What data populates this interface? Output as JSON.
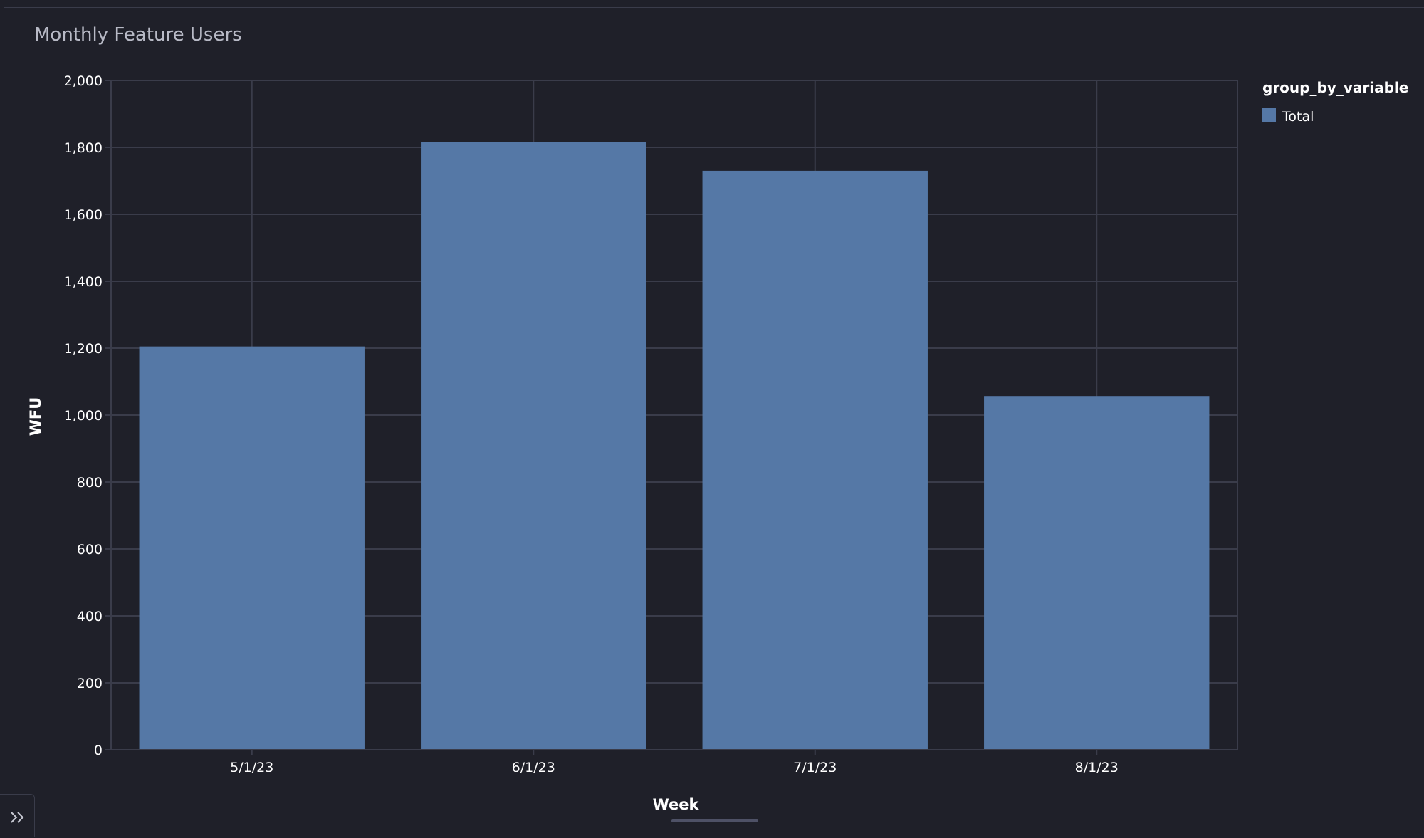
{
  "panel": {
    "title": "Monthly Feature Users"
  },
  "chart_data": {
    "type": "bar",
    "title": "Monthly Feature Users",
    "xlabel": "Week",
    "ylabel": "WFU",
    "categories": [
      "5/1/23",
      "6/1/23",
      "7/1/23",
      "8/1/23"
    ],
    "series": [
      {
        "name": "Total",
        "color": "#5578a6",
        "values": [
          1205,
          1815,
          1730,
          1057
        ]
      }
    ],
    "ylim": [
      0,
      2000
    ],
    "yticks": [
      0,
      200,
      400,
      600,
      800,
      1000,
      1200,
      1400,
      1600,
      1800,
      2000
    ],
    "ytick_labels": [
      "0",
      "200",
      "400",
      "600",
      "800",
      "1,000",
      "1,200",
      "1,400",
      "1,600",
      "1,800",
      "2,000"
    ],
    "grid": true,
    "legend": {
      "title": "group_by_variable",
      "placement": "top-right"
    }
  },
  "colors": {
    "background": "#1f2029",
    "grid": "#3a3c4a",
    "bar": "#5578a6",
    "text": "#ffffff",
    "title_text": "#b8bac6"
  },
  "icons": {
    "expand": "double-chevron-right-icon"
  }
}
